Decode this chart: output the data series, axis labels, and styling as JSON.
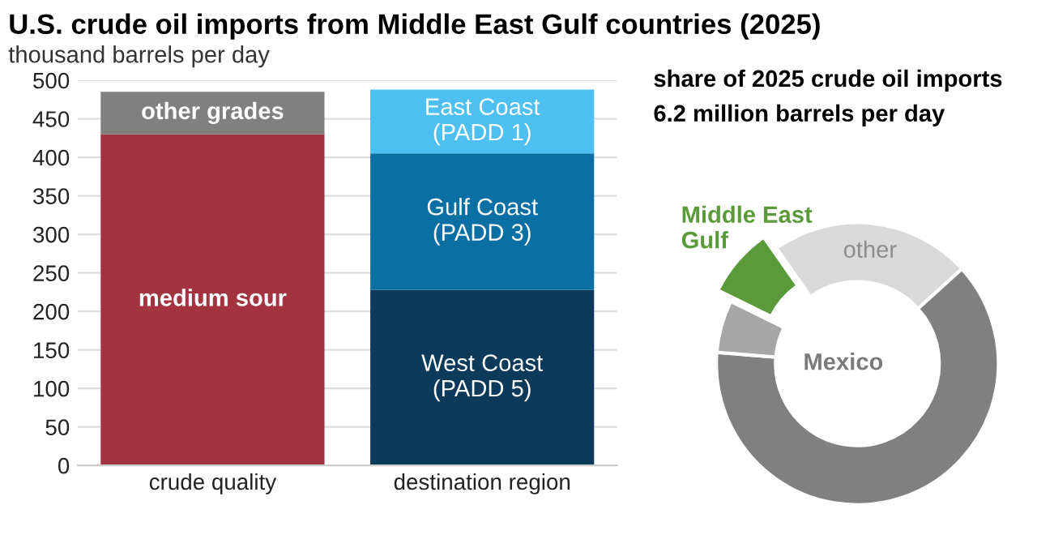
{
  "chart_data": [
    {
      "type": "bar",
      "title": "U.S. crude oil imports from Middle East Gulf countries (2025)",
      "subtitle": "thousand barrels per day",
      "categories": [
        "crude quality",
        "destination region"
      ],
      "stacked": true,
      "series": [
        {
          "colors": [
            "#a33340",
            "#0b3a5a"
          ],
          "values": [
            430,
            228
          ],
          "value_labels": [
            "medium sour",
            "West Coast\n(PADD 5)"
          ]
        },
        {
          "colors": [
            "#808080",
            "#0a6fa3"
          ],
          "values": [
            55,
            177
          ],
          "value_labels": [
            "other grades",
            "Gulf Coast\n(PADD 3)"
          ]
        },
        {
          "colors": [
            null,
            "#4dbff0"
          ],
          "values": [
            null,
            83
          ],
          "value_labels": [
            null,
            "East Coast\n(PADD 1)"
          ]
        }
      ],
      "ylim": [
        0,
        500
      ],
      "yticks": [
        0,
        50,
        100,
        150,
        200,
        250,
        300,
        350,
        400,
        450,
        500
      ],
      "grid": "y"
    },
    {
      "type": "donut",
      "title": "share of 2025 crude oil imports",
      "subtitle": "6.2 million barrels per day",
      "categories": [
        "other",
        null,
        "Mexico",
        "Middle East\nGulf"
      ],
      "values": [
        23,
        63,
        6,
        8
      ],
      "colors": [
        "#d9d9d9",
        "#808080",
        "#a6a6a6",
        "#5b9a3a"
      ]
    }
  ]
}
